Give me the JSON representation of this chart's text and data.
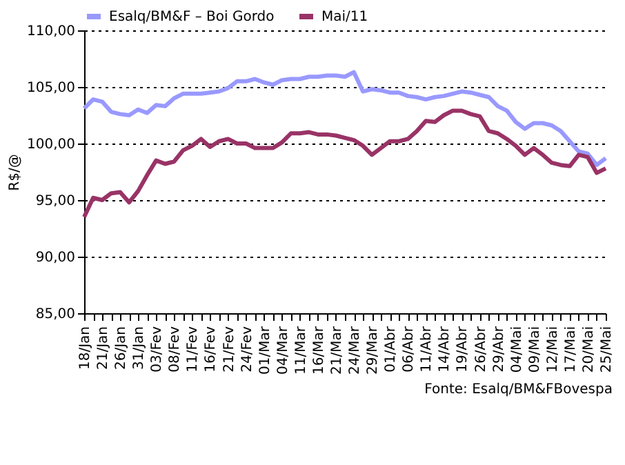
{
  "chart_data": {
    "type": "line",
    "categories": [
      "18/Jan",
      null,
      "21/Jan",
      null,
      "26/Jan",
      null,
      "31/Jan",
      null,
      "03/Fev",
      null,
      "08/Fev",
      null,
      "11/Fev",
      null,
      "16/Fev",
      null,
      "21/Fev",
      null,
      "24/Fev",
      null,
      "01/Mar",
      null,
      "04/Mar",
      null,
      "11/Mar",
      null,
      "16/Mar",
      null,
      "21/Mar",
      null,
      "24/Mar",
      null,
      "29/Mar",
      null,
      "01/Abr",
      null,
      "06/Abr",
      null,
      "11/Abr",
      null,
      "14/Abr",
      null,
      "19/Abr",
      null,
      "26/Abr",
      null,
      "29/Abr",
      null,
      "04/Mai",
      null,
      "09/Mai",
      null,
      "12/Mai",
      null,
      "17/Mai",
      null,
      "20/Mai",
      null,
      "25/Mai"
    ],
    "series": [
      {
        "name": "Esalq/BM&F – Boi Gordo",
        "color": "#9999ff",
        "values": [
          103.1,
          103.9,
          103.7,
          102.8,
          102.6,
          102.5,
          103.0,
          102.7,
          103.4,
          103.3,
          104.0,
          104.4,
          104.4,
          104.4,
          104.5,
          104.6,
          104.9,
          105.5,
          105.5,
          105.7,
          105.4,
          105.2,
          105.6,
          105.7,
          105.7,
          105.9,
          105.9,
          106.0,
          106.0,
          105.9,
          106.3,
          104.6,
          104.8,
          104.7,
          104.5,
          104.5,
          104.2,
          104.1,
          103.9,
          104.1,
          104.2,
          104.4,
          104.6,
          104.5,
          104.3,
          104.1,
          103.3,
          102.9,
          101.9,
          101.3,
          101.8,
          101.8,
          101.6,
          101.1,
          100.2,
          99.3,
          99.1,
          98.1,
          98.7
        ]
      },
      {
        "name": "Mai/11",
        "color": "#993366",
        "values": [
          93.5,
          95.2,
          95.0,
          95.6,
          95.7,
          94.8,
          95.8,
          97.2,
          98.5,
          98.2,
          98.4,
          99.4,
          99.8,
          100.4,
          99.7,
          100.2,
          100.4,
          100.0,
          100.0,
          99.6,
          99.6,
          99.6,
          100.1,
          100.9,
          100.9,
          101.0,
          100.8,
          100.8,
          100.7,
          100.5,
          100.3,
          99.8,
          99.0,
          99.6,
          100.2,
          100.2,
          100.4,
          101.1,
          102.0,
          101.9,
          102.5,
          102.9,
          102.9,
          102.6,
          102.4,
          101.1,
          100.9,
          100.4,
          99.8,
          99.0,
          99.6,
          99.0,
          98.3,
          98.1,
          98.0,
          99.0,
          98.8,
          97.4,
          97.8
        ]
      }
    ],
    "ylabel": "R$/@",
    "ylim": [
      85,
      110
    ],
    "yticks": [
      {
        "value": 85,
        "label": "85,00"
      },
      {
        "value": 90,
        "label": "90,00"
      },
      {
        "value": 95,
        "label": "95,00"
      },
      {
        "value": 100,
        "label": "100,00"
      },
      {
        "value": 105,
        "label": "105,00"
      },
      {
        "value": 110,
        "label": "110,00"
      }
    ],
    "grid": "y",
    "legend": "top",
    "line_style": "solid",
    "marker": "none",
    "annotations": [
      "Fonte: Esalq/BM&FBovespa"
    ]
  }
}
